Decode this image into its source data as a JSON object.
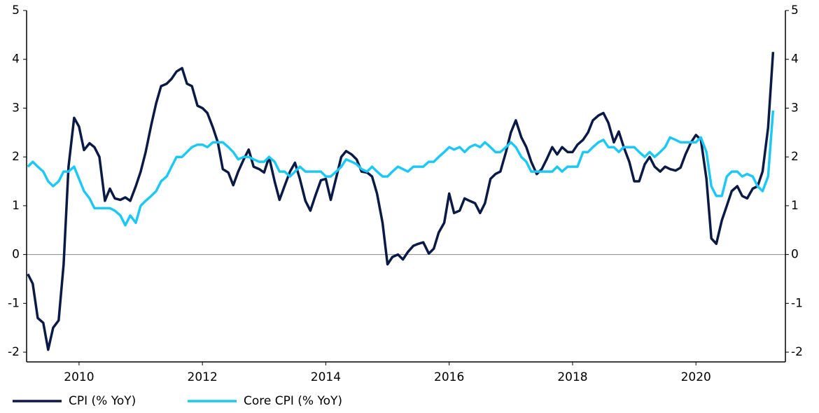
{
  "chart_data": {
    "type": "line",
    "x": [
      2009.17,
      2009.25,
      2009.33,
      2009.42,
      2009.5,
      2009.58,
      2009.67,
      2009.75,
      2009.83,
      2009.92,
      2010.0,
      2010.08,
      2010.17,
      2010.25,
      2010.33,
      2010.42,
      2010.5,
      2010.58,
      2010.67,
      2010.75,
      2010.83,
      2010.92,
      2011.0,
      2011.08,
      2011.17,
      2011.25,
      2011.33,
      2011.42,
      2011.5,
      2011.58,
      2011.67,
      2011.75,
      2011.83,
      2011.92,
      2012.0,
      2012.08,
      2012.17,
      2012.25,
      2012.33,
      2012.42,
      2012.5,
      2012.58,
      2012.67,
      2012.75,
      2012.83,
      2012.92,
      2013.0,
      2013.08,
      2013.17,
      2013.25,
      2013.33,
      2013.42,
      2013.5,
      2013.58,
      2013.67,
      2013.75,
      2013.83,
      2013.92,
      2014.0,
      2014.08,
      2014.17,
      2014.25,
      2014.33,
      2014.42,
      2014.5,
      2014.58,
      2014.67,
      2014.75,
      2014.83,
      2014.92,
      2015.0,
      2015.08,
      2015.17,
      2015.25,
      2015.33,
      2015.42,
      2015.5,
      2015.58,
      2015.67,
      2015.75,
      2015.83,
      2015.92,
      2016.0,
      2016.08,
      2016.17,
      2016.25,
      2016.33,
      2016.42,
      2016.5,
      2016.58,
      2016.67,
      2016.75,
      2016.83,
      2016.92,
      2017.0,
      2017.08,
      2017.17,
      2017.25,
      2017.33,
      2017.42,
      2017.5,
      2017.58,
      2017.67,
      2017.75,
      2017.83,
      2017.92,
      2018.0,
      2018.08,
      2018.17,
      2018.25,
      2018.33,
      2018.42,
      2018.5,
      2018.58,
      2018.67,
      2018.75,
      2018.83,
      2018.92,
      2019.0,
      2019.08,
      2019.17,
      2019.25,
      2019.33,
      2019.42,
      2019.5,
      2019.58,
      2019.67,
      2019.75,
      2019.83,
      2019.92,
      2020.0,
      2020.08,
      2020.17,
      2020.25,
      2020.33,
      2020.42,
      2020.5,
      2020.58,
      2020.67,
      2020.75,
      2020.83,
      2020.92,
      2021.0,
      2021.08,
      2021.17,
      2021.25
    ],
    "series": [
      {
        "name": "CPI (% YoY)",
        "color": "#0b1a45",
        "values": [
          -0.4,
          -0.6,
          -1.3,
          -1.4,
          -1.95,
          -1.5,
          -1.35,
          -0.2,
          1.8,
          2.8,
          2.62,
          2.14,
          2.28,
          2.2,
          2.0,
          1.1,
          1.35,
          1.15,
          1.12,
          1.17,
          1.1,
          1.4,
          1.7,
          2.1,
          2.65,
          3.1,
          3.45,
          3.5,
          3.6,
          3.75,
          3.82,
          3.5,
          3.45,
          3.05,
          3.0,
          2.9,
          2.6,
          2.3,
          1.75,
          1.68,
          1.42,
          1.7,
          1.95,
          2.15,
          1.8,
          1.75,
          1.68,
          2.0,
          1.5,
          1.12,
          1.4,
          1.7,
          1.88,
          1.55,
          1.1,
          0.9,
          1.2,
          1.52,
          1.55,
          1.12,
          1.58,
          2.0,
          2.12,
          2.05,
          1.95,
          1.7,
          1.68,
          1.6,
          1.25,
          0.65,
          -0.2,
          -0.05,
          0.0,
          -0.1,
          0.05,
          0.18,
          0.22,
          0.25,
          0.02,
          0.12,
          0.45,
          0.65,
          1.25,
          0.85,
          0.9,
          1.15,
          1.1,
          1.05,
          0.85,
          1.05,
          1.55,
          1.65,
          1.7,
          2.1,
          2.5,
          2.75,
          2.4,
          2.2,
          1.9,
          1.65,
          1.75,
          1.95,
          2.2,
          2.05,
          2.2,
          2.1,
          2.1,
          2.25,
          2.35,
          2.5,
          2.75,
          2.85,
          2.9,
          2.7,
          2.3,
          2.52,
          2.2,
          1.9,
          1.5,
          1.5,
          1.85,
          2.0,
          1.8,
          1.7,
          1.8,
          1.75,
          1.72,
          1.78,
          2.05,
          2.3,
          2.45,
          2.35,
          1.55,
          0.33,
          0.22,
          0.7,
          1.0,
          1.3,
          1.4,
          1.2,
          1.15,
          1.35,
          1.4,
          1.7,
          2.6,
          4.15
        ]
      },
      {
        "name": "Core CPI (% YoY)",
        "color": "#1ec8f5",
        "values": [
          1.8,
          1.9,
          1.8,
          1.7,
          1.5,
          1.4,
          1.5,
          1.7,
          1.7,
          1.8,
          1.55,
          1.3,
          1.15,
          0.95,
          0.95,
          0.95,
          0.95,
          0.9,
          0.8,
          0.6,
          0.8,
          0.65,
          1.0,
          1.1,
          1.2,
          1.3,
          1.5,
          1.6,
          1.8,
          2.0,
          2.0,
          2.1,
          2.2,
          2.25,
          2.25,
          2.2,
          2.3,
          2.3,
          2.3,
          2.2,
          2.1,
          1.95,
          2.0,
          2.0,
          1.95,
          1.9,
          1.9,
          2.0,
          1.9,
          1.7,
          1.7,
          1.6,
          1.7,
          1.8,
          1.7,
          1.7,
          1.7,
          1.7,
          1.6,
          1.6,
          1.7,
          1.8,
          1.95,
          1.9,
          1.85,
          1.75,
          1.7,
          1.8,
          1.7,
          1.6,
          1.6,
          1.7,
          1.8,
          1.75,
          1.7,
          1.8,
          1.8,
          1.8,
          1.9,
          1.9,
          2.0,
          2.1,
          2.2,
          2.15,
          2.2,
          2.1,
          2.2,
          2.25,
          2.2,
          2.3,
          2.2,
          2.1,
          2.1,
          2.2,
          2.3,
          2.2,
          2.0,
          1.9,
          1.7,
          1.7,
          1.7,
          1.7,
          1.7,
          1.8,
          1.7,
          1.8,
          1.8,
          1.8,
          2.1,
          2.1,
          2.2,
          2.3,
          2.35,
          2.2,
          2.2,
          2.1,
          2.2,
          2.2,
          2.2,
          2.1,
          2.0,
          2.1,
          2.0,
          2.1,
          2.2,
          2.4,
          2.35,
          2.3,
          2.3,
          2.3,
          2.3,
          2.4,
          2.1,
          1.4,
          1.2,
          1.2,
          1.6,
          1.7,
          1.7,
          1.6,
          1.65,
          1.6,
          1.4,
          1.3,
          1.6,
          2.95
        ]
      }
    ],
    "xlim": [
      2009.15,
      2021.45
    ],
    "xticks": [
      2010,
      2012,
      2014,
      2016,
      2018,
      2020
    ],
    "ylim": [
      -2.2,
      5
    ],
    "yticks": [
      -2,
      -1,
      0,
      1,
      2,
      3,
      4,
      5
    ],
    "y2lim": [
      -2.2,
      5
    ],
    "y2ticks": [
      -2,
      -1,
      0,
      1,
      2,
      3,
      4,
      5
    ]
  }
}
